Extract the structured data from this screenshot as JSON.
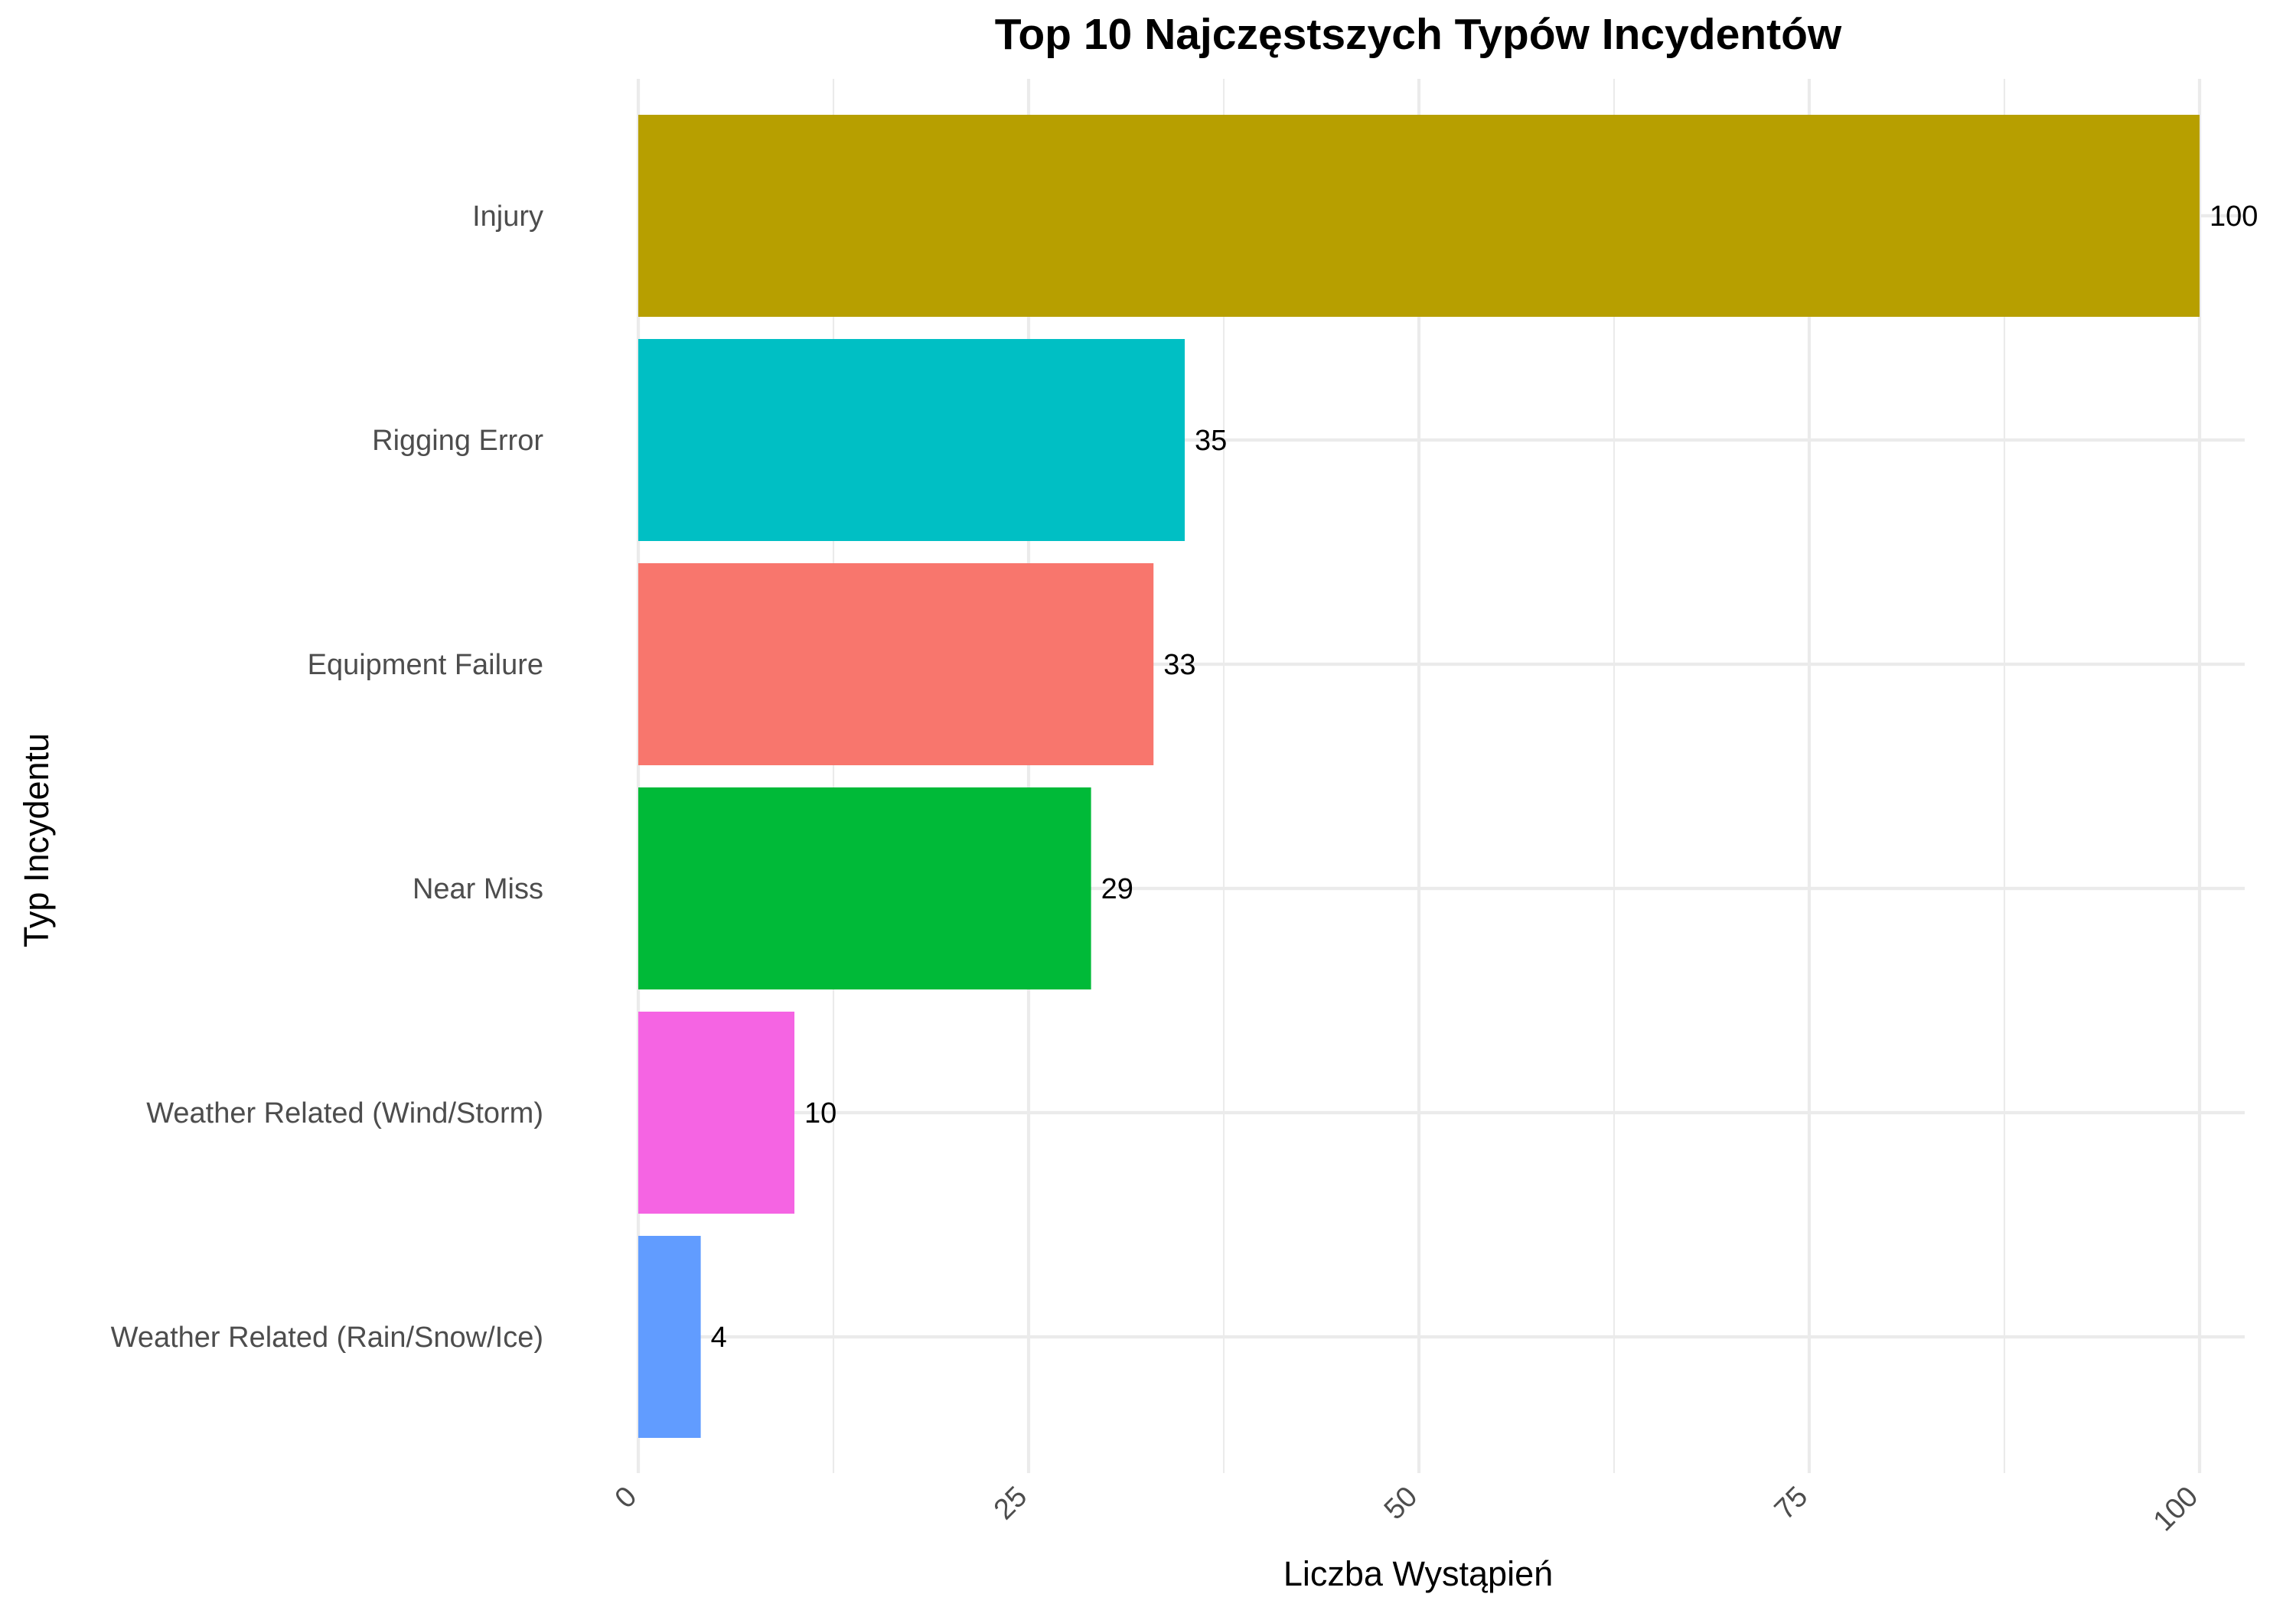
{
  "chart_data": {
    "type": "bar",
    "orientation": "horizontal",
    "title": "Top 10 Najczęstszych Typów Incydentów",
    "xlabel": "Liczba Wystąpień",
    "ylabel": "Typ Incydentu",
    "categories": [
      "Injury",
      "Rigging Error",
      "Equipment Failure",
      "Near Miss",
      "Weather Related (Wind/Storm)",
      "Weather Related (Rain/Snow/Ice)"
    ],
    "values": [
      100,
      35,
      33,
      29,
      10,
      4
    ],
    "colors": [
      "#B79F00",
      "#00BFC4",
      "#F8766D",
      "#00BA38",
      "#F564E3",
      "#619CFF"
    ],
    "xlim": [
      0,
      100
    ],
    "xticks": [
      0,
      25,
      50,
      75,
      100
    ],
    "grid": true,
    "legend": "none"
  }
}
